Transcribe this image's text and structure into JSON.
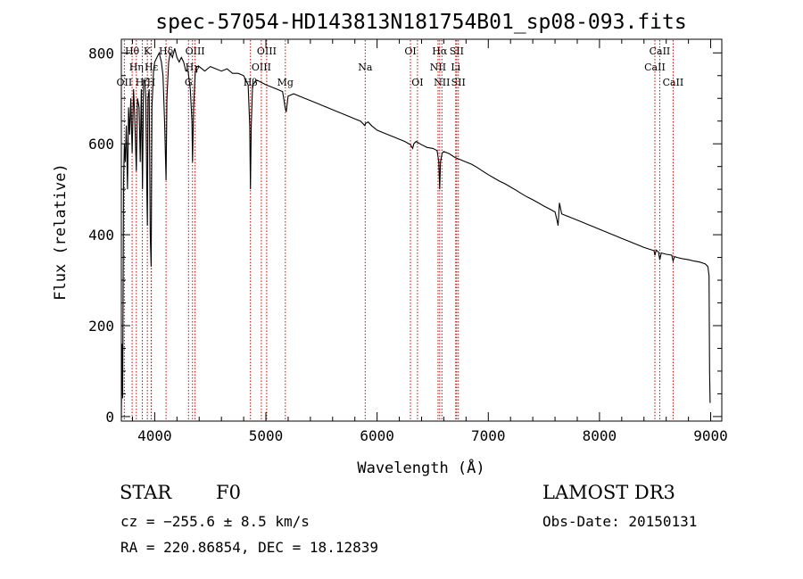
{
  "chart_data": {
    "type": "line",
    "title": "spec-57054-HD143813N181754B01_sp08-093.fits",
    "xlabel": "Wavelength (Å)",
    "ylabel": "Flux (relative)",
    "xlim": [
      3700,
      9100
    ],
    "ylim": [
      -10,
      830
    ],
    "x_ticks": [
      {
        "value": 4000,
        "label": "4000"
      },
      {
        "value": 5000,
        "label": "5000"
      },
      {
        "value": 6000,
        "label": "6000"
      },
      {
        "value": 7000,
        "label": "7000"
      },
      {
        "value": 8000,
        "label": "8000"
      },
      {
        "value": 9000,
        "label": "9000"
      }
    ],
    "y_ticks": [
      {
        "value": 0,
        "label": "0"
      },
      {
        "value": 200,
        "label": "200"
      },
      {
        "value": 400,
        "label": "400"
      },
      {
        "value": 600,
        "label": "600"
      },
      {
        "value": 800,
        "label": "800"
      }
    ],
    "series": [
      {
        "name": "spectrum",
        "points": [
          [
            3700,
            0
          ],
          [
            3705,
            160
          ],
          [
            3712,
            40
          ],
          [
            3720,
            520
          ],
          [
            3727,
            600
          ],
          [
            3735,
            560
          ],
          [
            3745,
            640
          ],
          [
            3755,
            500
          ],
          [
            3765,
            680
          ],
          [
            3775,
            620
          ],
          [
            3785,
            700
          ],
          [
            3797,
            580
          ],
          [
            3810,
            720
          ],
          [
            3820,
            660
          ],
          [
            3835,
            540
          ],
          [
            3845,
            700
          ],
          [
            3860,
            680
          ],
          [
            3870,
            560
          ],
          [
            3880,
            720
          ],
          [
            3890,
            500
          ],
          [
            3900,
            740
          ],
          [
            3910,
            740
          ],
          [
            3920,
            700
          ],
          [
            3930,
            480
          ],
          [
            3934,
            420
          ],
          [
            3940,
            700
          ],
          [
            3950,
            720
          ],
          [
            3960,
            400
          ],
          [
            3968,
            330
          ],
          [
            3975,
            680
          ],
          [
            3990,
            760
          ],
          [
            4000,
            780
          ],
          [
            4020,
            790
          ],
          [
            4040,
            800
          ],
          [
            4060,
            780
          ],
          [
            4075,
            750
          ],
          [
            4090,
            640
          ],
          [
            4102,
            520
          ],
          [
            4110,
            700
          ],
          [
            4125,
            780
          ],
          [
            4140,
            800
          ],
          [
            4160,
            790
          ],
          [
            4180,
            810
          ],
          [
            4200,
            790
          ],
          [
            4220,
            780
          ],
          [
            4240,
            790
          ],
          [
            4260,
            780
          ],
          [
            4280,
            760
          ],
          [
            4300,
            760
          ],
          [
            4320,
            720
          ],
          [
            4335,
            650
          ],
          [
            4340,
            560
          ],
          [
            4350,
            680
          ],
          [
            4365,
            760
          ],
          [
            4380,
            770
          ],
          [
            4400,
            770
          ],
          [
            4450,
            760
          ],
          [
            4500,
            770
          ],
          [
            4550,
            765
          ],
          [
            4600,
            760
          ],
          [
            4650,
            765
          ],
          [
            4700,
            755
          ],
          [
            4750,
            755
          ],
          [
            4800,
            750
          ],
          [
            4840,
            730
          ],
          [
            4855,
            640
          ],
          [
            4861,
            500
          ],
          [
            4868,
            640
          ],
          [
            4880,
            730
          ],
          [
            4920,
            740
          ],
          [
            4960,
            735
          ],
          [
            5000,
            730
          ],
          [
            5050,
            725
          ],
          [
            5100,
            720
          ],
          [
            5150,
            715
          ],
          [
            5167,
            690
          ],
          [
            5172,
            680
          ],
          [
            5183,
            670
          ],
          [
            5200,
            705
          ],
          [
            5250,
            710
          ],
          [
            5300,
            705
          ],
          [
            5350,
            700
          ],
          [
            5400,
            695
          ],
          [
            5450,
            690
          ],
          [
            5500,
            685
          ],
          [
            5550,
            680
          ],
          [
            5600,
            675
          ],
          [
            5650,
            670
          ],
          [
            5700,
            665
          ],
          [
            5750,
            660
          ],
          [
            5800,
            655
          ],
          [
            5850,
            650
          ],
          [
            5890,
            640
          ],
          [
            5896,
            645
          ],
          [
            5920,
            648
          ],
          [
            5950,
            640
          ],
          [
            6000,
            630
          ],
          [
            6050,
            625
          ],
          [
            6100,
            620
          ],
          [
            6150,
            615
          ],
          [
            6200,
            610
          ],
          [
            6250,
            605
          ],
          [
            6300,
            598
          ],
          [
            6320,
            590
          ],
          [
            6330,
            600
          ],
          [
            6350,
            605
          ],
          [
            6400,
            598
          ],
          [
            6450,
            592
          ],
          [
            6500,
            590
          ],
          [
            6540,
            585
          ],
          [
            6555,
            560
          ],
          [
            6563,
            500
          ],
          [
            6570,
            560
          ],
          [
            6585,
            580
          ],
          [
            6600,
            583
          ],
          [
            6650,
            578
          ],
          [
            6700,
            570
          ],
          [
            6750,
            565
          ],
          [
            6800,
            560
          ],
          [
            6850,
            555
          ],
          [
            6900,
            548
          ],
          [
            6950,
            540
          ],
          [
            7000,
            532
          ],
          [
            7050,
            525
          ],
          [
            7100,
            518
          ],
          [
            7150,
            512
          ],
          [
            7200,
            505
          ],
          [
            7250,
            498
          ],
          [
            7300,
            490
          ],
          [
            7350,
            483
          ],
          [
            7400,
            477
          ],
          [
            7450,
            470
          ],
          [
            7500,
            463
          ],
          [
            7550,
            457
          ],
          [
            7600,
            450
          ],
          [
            7620,
            430
          ],
          [
            7628,
            420
          ],
          [
            7640,
            470
          ],
          [
            7660,
            446
          ],
          [
            7700,
            442
          ],
          [
            7750,
            437
          ],
          [
            7800,
            432
          ],
          [
            7850,
            427
          ],
          [
            7900,
            422
          ],
          [
            7950,
            417
          ],
          [
            8000,
            412
          ],
          [
            8050,
            407
          ],
          [
            8100,
            402
          ],
          [
            8150,
            397
          ],
          [
            8200,
            392
          ],
          [
            8250,
            387
          ],
          [
            8300,
            382
          ],
          [
            8350,
            377
          ],
          [
            8400,
            372
          ],
          [
            8450,
            368
          ],
          [
            8490,
            365
          ],
          [
            8498,
            355
          ],
          [
            8510,
            366
          ],
          [
            8530,
            362
          ],
          [
            8542,
            345
          ],
          [
            8555,
            360
          ],
          [
            8600,
            357
          ],
          [
            8650,
            355
          ],
          [
            8662,
            342
          ],
          [
            8675,
            352
          ],
          [
            8700,
            350
          ],
          [
            8750,
            347
          ],
          [
            8800,
            345
          ],
          [
            8850,
            342
          ],
          [
            8900,
            340
          ],
          [
            8950,
            336
          ],
          [
            8975,
            330
          ],
          [
            8985,
            310
          ],
          [
            8990,
            100
          ],
          [
            8995,
            30
          ]
        ]
      }
    ],
    "lines": [
      {
        "name": "OII",
        "wavelength": 3727,
        "label": "OII",
        "row": 2
      },
      {
        "name": "Hθ",
        "wavelength": 3797,
        "label": "Hθ",
        "row": 0
      },
      {
        "name": "Hη",
        "wavelength": 3835,
        "label": "Hη",
        "row": 1
      },
      {
        "name": "Hζ",
        "wavelength": 3889,
        "label": "Hζ",
        "row": 2
      },
      {
        "name": "K",
        "wavelength": 3934,
        "label": "K",
        "row": 0
      },
      {
        "name": "H",
        "wavelength": 3968,
        "label": "H",
        "row": 2
      },
      {
        "name": "Hε",
        "wavelength": 3970,
        "label": "Hε",
        "row": 1
      },
      {
        "name": "Hδ",
        "wavelength": 4102,
        "label": "Hδ",
        "row": 0
      },
      {
        "name": "G",
        "wavelength": 4304,
        "label": "G",
        "row": 2
      },
      {
        "name": "Hγ",
        "wavelength": 4340,
        "label": "Hγ",
        "row": 1
      },
      {
        "name": "OIII-4363",
        "wavelength": 4363,
        "label": "OIII",
        "row": 0
      },
      {
        "name": "Hβ",
        "wavelength": 4861,
        "label": "Hβ",
        "row": 2
      },
      {
        "name": "OIII-4959",
        "wavelength": 4959,
        "label": "OIII",
        "row": 1
      },
      {
        "name": "OIII-5007",
        "wavelength": 5007,
        "label": "OIII",
        "row": 0
      },
      {
        "name": "Mg",
        "wavelength": 5175,
        "label": "Mg",
        "row": 2
      },
      {
        "name": "Na",
        "wavelength": 5893,
        "label": "Na",
        "row": 1
      },
      {
        "name": "OI-6300",
        "wavelength": 6300,
        "label": "OI",
        "row": 0
      },
      {
        "name": "OI-6363",
        "wavelength": 6363,
        "label": "OI",
        "row": 2
      },
      {
        "name": "NII-6548",
        "wavelength": 6548,
        "label": "NII",
        "row": 1
      },
      {
        "name": "Hα",
        "wavelength": 6563,
        "label": "Hα",
        "row": 0
      },
      {
        "name": "NII-6583",
        "wavelength": 6583,
        "label": "NII",
        "row": 2
      },
      {
        "name": "Li",
        "wavelength": 6707,
        "label": "Li",
        "row": 1
      },
      {
        "name": "SII-6716",
        "wavelength": 6716,
        "label": "SII",
        "row": 0
      },
      {
        "name": "SII-6731",
        "wavelength": 6731,
        "label": "SII",
        "row": 2
      },
      {
        "name": "CaII-8498",
        "wavelength": 8498,
        "label": "CaII",
        "row": 1
      },
      {
        "name": "CaII-8542",
        "wavelength": 8542,
        "label": "CaII",
        "row": 0
      },
      {
        "name": "CaII-8662",
        "wavelength": 8662,
        "label": "CaII",
        "row": 2
      }
    ],
    "grid": false,
    "legend": "none"
  },
  "info": {
    "object_class": "STAR",
    "subclass": "F0",
    "survey": "LAMOST DR3",
    "cz": "cz = −255.6 ± 8.5 km/s",
    "obs_date": "Obs-Date: 20150131",
    "coords": "RA = 220.86854, DEC =  18.12839"
  },
  "colors": {
    "spectrum": "#000000",
    "line_marker": "#cc0000",
    "axes": "#000000",
    "background": "#ffffff"
  }
}
